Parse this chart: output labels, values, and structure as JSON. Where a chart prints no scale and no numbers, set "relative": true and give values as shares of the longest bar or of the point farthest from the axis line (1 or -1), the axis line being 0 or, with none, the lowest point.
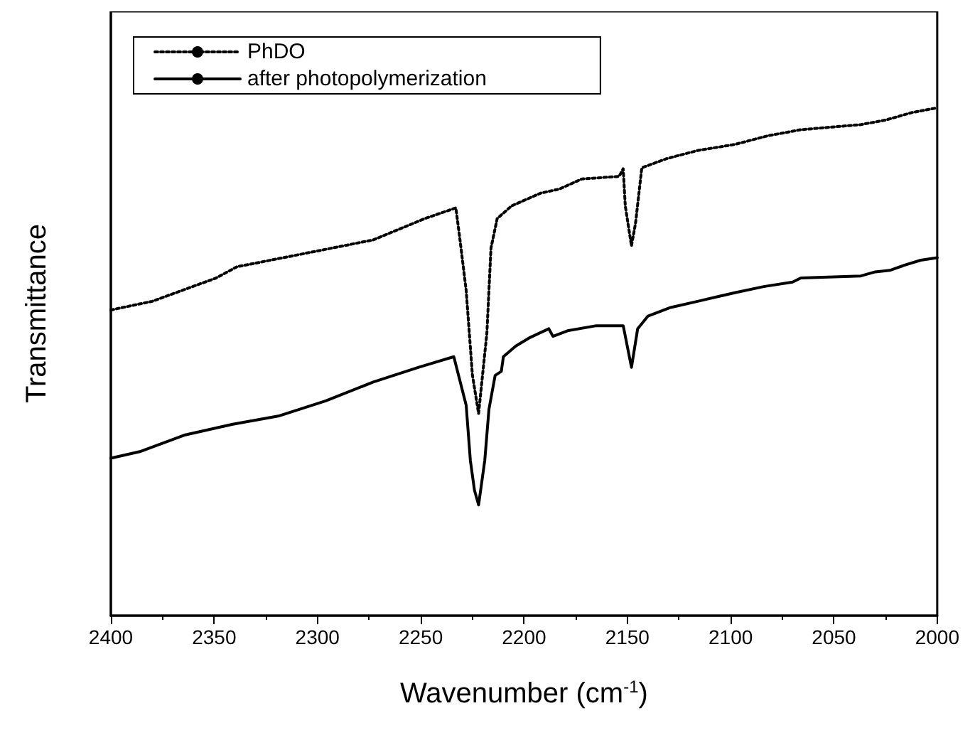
{
  "chart_data": {
    "type": "line",
    "xlabel": "Wavenumber (cm$^{-1}$)",
    "ylabel": "Transmittance",
    "relative": true,
    "xlim": [
      2400,
      2000
    ],
    "xticks": [
      2400,
      2350,
      2300,
      2250,
      2200,
      2150,
      2100,
      2050,
      2000
    ],
    "legend": "top left",
    "grid": false,
    "marker": "none",
    "series": [
      {
        "name": "PhDO",
        "color": "#000000",
        "line_style": "dotted",
        "x": [
          2400,
          2380,
          2349,
          2339,
          2299,
          2273,
          2248,
          2233,
          2231,
          2228,
          2225,
          2222,
          2218,
          2216,
          2213,
          2206,
          2192,
          2183,
          2172,
          2154,
          2152,
          2151,
          2148,
          2146,
          2143,
          2131,
          2116,
          2098,
          2082,
          2066,
          2037,
          2025,
          2012,
          2000
        ],
        "values": [
          0.602,
          0.619,
          0.665,
          0.687,
          0.719,
          0.74,
          0.782,
          0.803,
          0.74,
          0.64,
          0.474,
          0.398,
          0.556,
          0.724,
          0.782,
          0.807,
          0.832,
          0.84,
          0.86,
          0.865,
          0.88,
          0.807,
          0.728,
          0.774,
          0.882,
          0.9,
          0.916,
          0.928,
          0.945,
          0.957,
          0.967,
          0.976,
          0.991,
          1.0
        ]
      },
      {
        "name": "after photopolymerization",
        "color": "#000000",
        "line_style": "solid",
        "x": [
          2400,
          2386,
          2364,
          2341,
          2319,
          2296,
          2273,
          2251,
          2234,
          2228,
          2226,
          2224,
          2222,
          2219,
          2217,
          2214,
          2211,
          2210,
          2204,
          2197,
          2188,
          2186,
          2179,
          2165,
          2152,
          2148,
          2145,
          2140,
          2129,
          2116,
          2098,
          2084,
          2070,
          2066,
          2037,
          2030,
          2023,
          2016,
          2008,
          2000
        ],
        "values": [
          0.31,
          0.323,
          0.356,
          0.377,
          0.393,
          0.423,
          0.46,
          0.489,
          0.51,
          0.414,
          0.306,
          0.247,
          0.218,
          0.306,
          0.406,
          0.473,
          0.481,
          0.51,
          0.531,
          0.548,
          0.565,
          0.55,
          0.561,
          0.571,
          0.571,
          0.489,
          0.565,
          0.59,
          0.607,
          0.619,
          0.636,
          0.648,
          0.657,
          0.665,
          0.669,
          0.677,
          0.68,
          0.69,
          0.7,
          0.705
        ]
      }
    ]
  }
}
